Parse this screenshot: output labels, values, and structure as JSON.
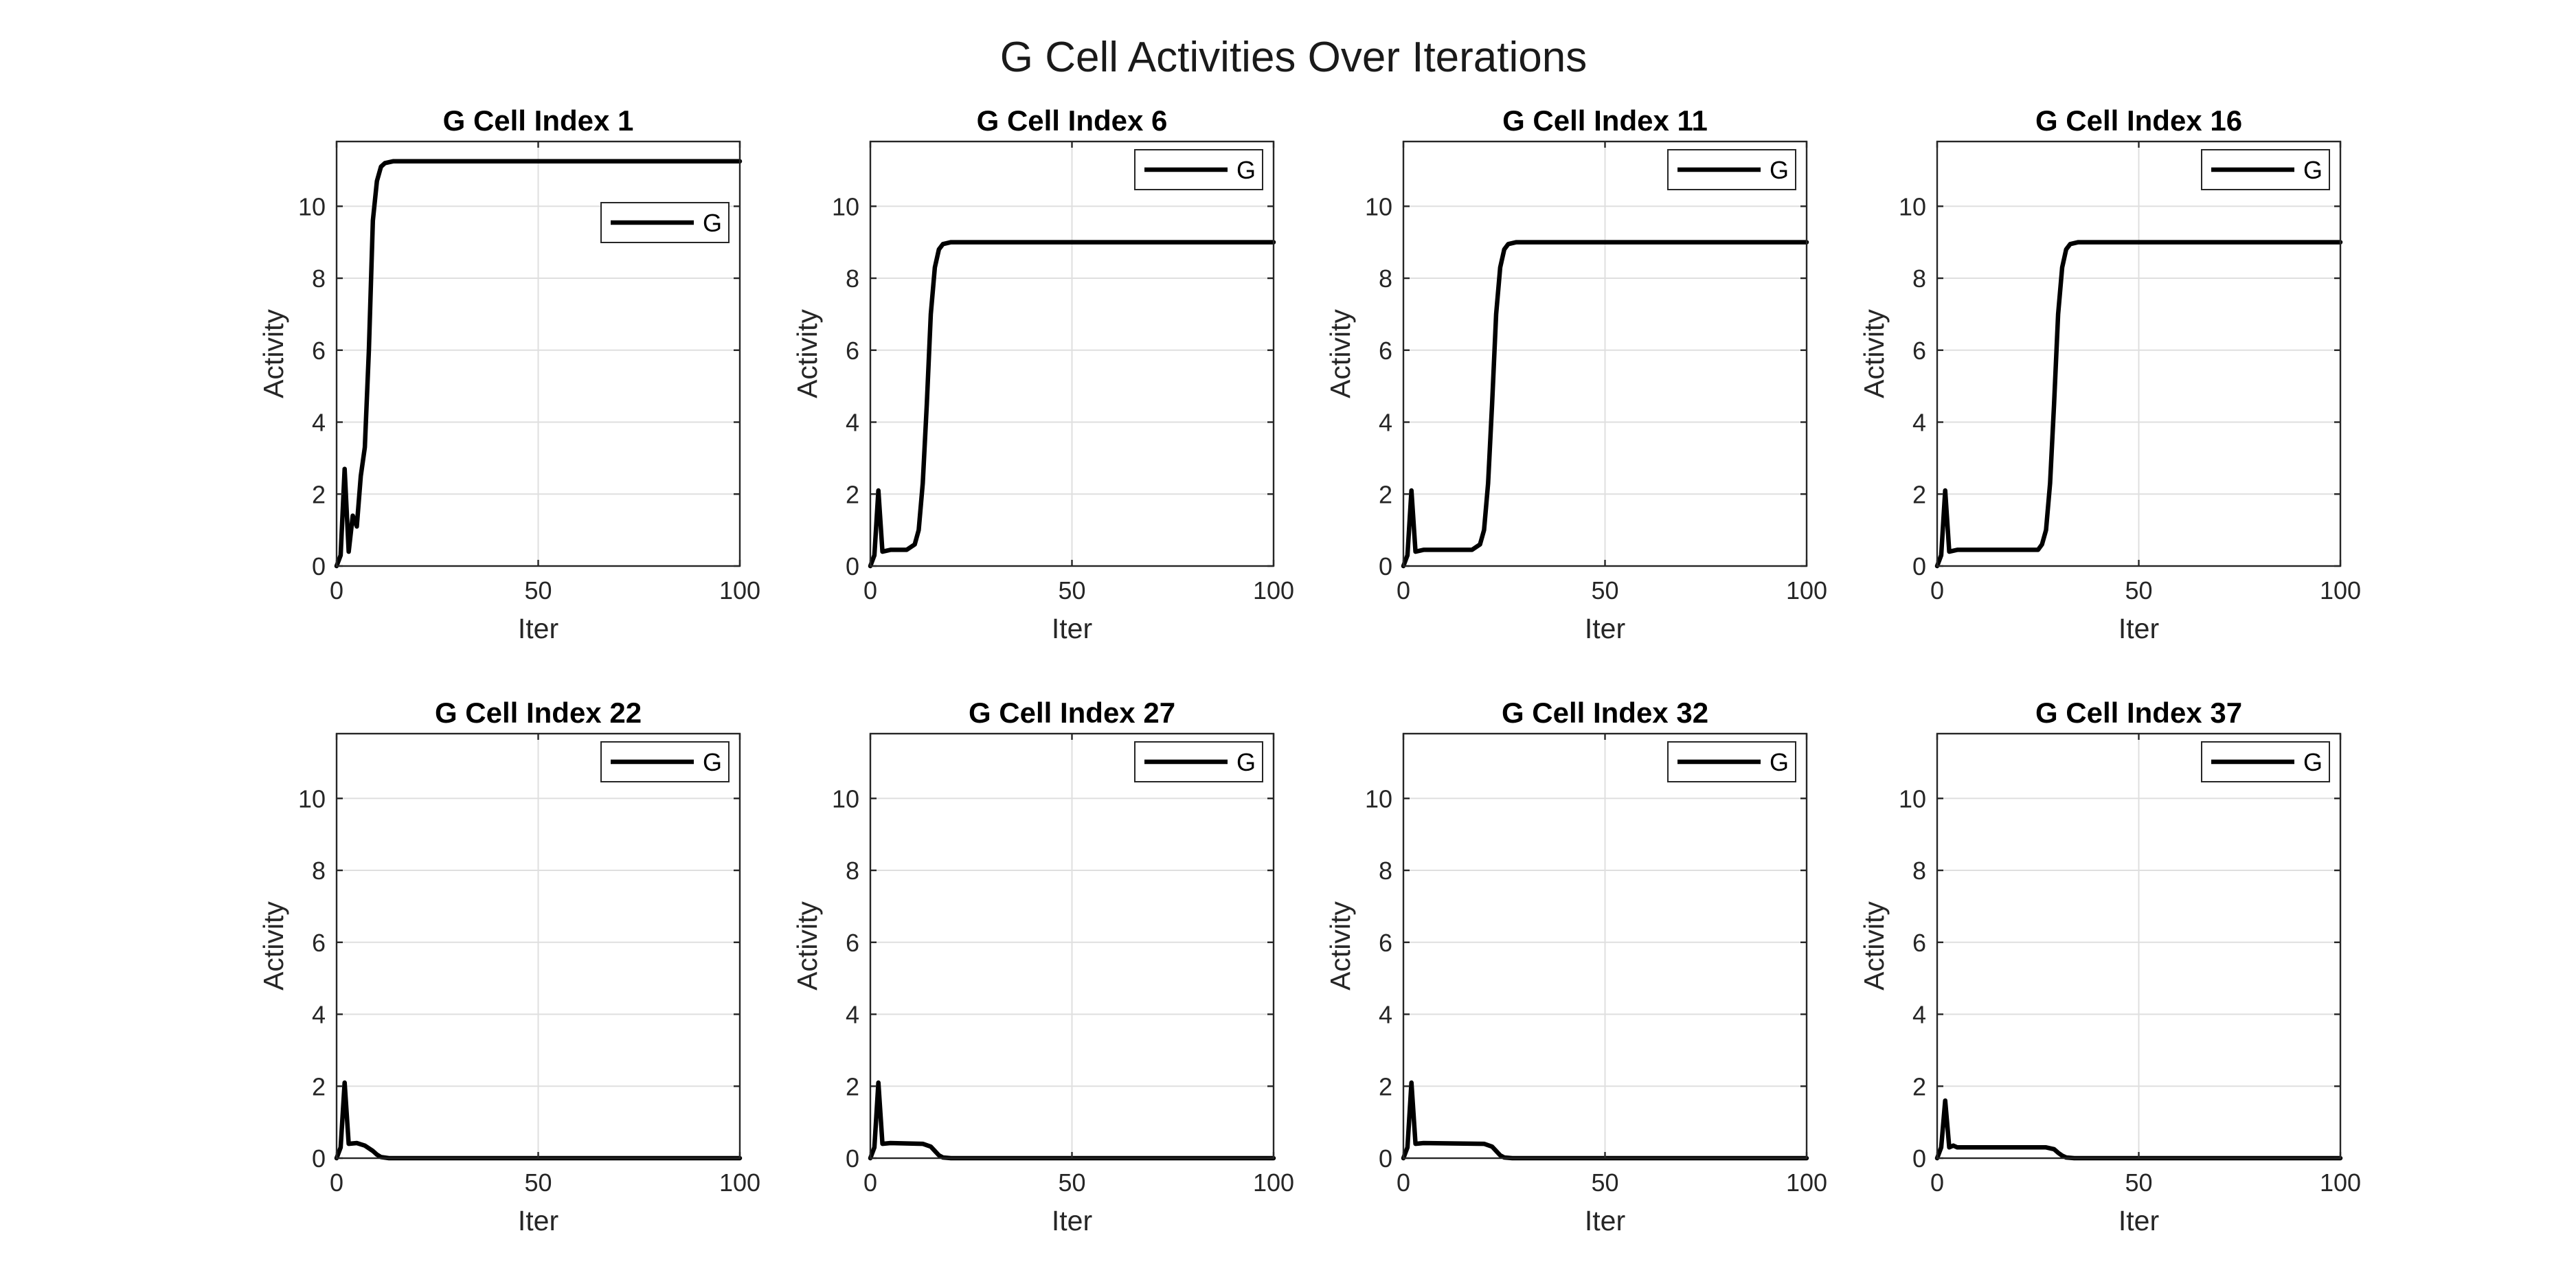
{
  "figure": {
    "title": "G Cell Activities Over Iterations"
  },
  "colors": {
    "series": "#000000",
    "grid": "#dfdfdf",
    "axis": "#262626"
  },
  "chart_data": [
    {
      "type": "line",
      "title": "G Cell Index 1",
      "xlabel": "Iter",
      "ylabel": "Activity",
      "xlim": [
        0,
        100
      ],
      "ylim": [
        0,
        11.8
      ],
      "xticks": [
        0,
        50,
        100
      ],
      "yticks": [
        0,
        2,
        4,
        6,
        8,
        10
      ],
      "grid": true,
      "legend": {
        "position": "upper-right-inset",
        "entries": [
          "G"
        ]
      },
      "series": [
        {
          "name": "G",
          "points": [
            [
              0,
              0
            ],
            [
              1,
              0.3
            ],
            [
              2,
              2.7
            ],
            [
              3,
              0.4
            ],
            [
              4,
              1.4
            ],
            [
              5,
              1.1
            ],
            [
              6,
              2.5
            ],
            [
              7,
              3.3
            ],
            [
              8,
              6
            ],
            [
              9,
              9.6
            ],
            [
              10,
              10.7
            ],
            [
              11,
              11.1
            ],
            [
              12,
              11.2
            ],
            [
              14,
              11.25
            ],
            [
              100,
              11.25
            ]
          ]
        }
      ]
    },
    {
      "type": "line",
      "title": "G Cell Index 6",
      "xlabel": "Iter",
      "ylabel": "Activity",
      "xlim": [
        0,
        100
      ],
      "ylim": [
        0,
        11.8
      ],
      "xticks": [
        0,
        50,
        100
      ],
      "yticks": [
        0,
        2,
        4,
        6,
        8,
        10
      ],
      "grid": true,
      "legend": {
        "position": "top-right",
        "entries": [
          "G"
        ]
      },
      "series": [
        {
          "name": "G",
          "points": [
            [
              0,
              0
            ],
            [
              1,
              0.3
            ],
            [
              2,
              2.1
            ],
            [
              3,
              0.4
            ],
            [
              5,
              0.45
            ],
            [
              9,
              0.45
            ],
            [
              11,
              0.6
            ],
            [
              12,
              1
            ],
            [
              13,
              2.3
            ],
            [
              14,
              4.5
            ],
            [
              15,
              7
            ],
            [
              16,
              8.3
            ],
            [
              17,
              8.8
            ],
            [
              18,
              8.95
            ],
            [
              20,
              9
            ],
            [
              100,
              9
            ]
          ]
        }
      ]
    },
    {
      "type": "line",
      "title": "G Cell Index 11",
      "xlabel": "Iter",
      "ylabel": "Activity",
      "xlim": [
        0,
        100
      ],
      "ylim": [
        0,
        11.8
      ],
      "xticks": [
        0,
        50,
        100
      ],
      "yticks": [
        0,
        2,
        4,
        6,
        8,
        10
      ],
      "grid": true,
      "legend": {
        "position": "top-right",
        "entries": [
          "G"
        ]
      },
      "series": [
        {
          "name": "G",
          "points": [
            [
              0,
              0
            ],
            [
              1,
              0.3
            ],
            [
              2,
              2.1
            ],
            [
              3,
              0.4
            ],
            [
              5,
              0.45
            ],
            [
              17,
              0.45
            ],
            [
              19,
              0.6
            ],
            [
              20,
              1
            ],
            [
              21,
              2.3
            ],
            [
              22,
              4.5
            ],
            [
              23,
              7
            ],
            [
              24,
              8.3
            ],
            [
              25,
              8.8
            ],
            [
              26,
              8.95
            ],
            [
              28,
              9
            ],
            [
              100,
              9
            ]
          ]
        }
      ]
    },
    {
      "type": "line",
      "title": "G Cell Index 16",
      "xlabel": "Iter",
      "ylabel": "Activity",
      "xlim": [
        0,
        100
      ],
      "ylim": [
        0,
        11.8
      ],
      "xticks": [
        0,
        50,
        100
      ],
      "yticks": [
        0,
        2,
        4,
        6,
        8,
        10
      ],
      "grid": true,
      "legend": {
        "position": "top-right",
        "entries": [
          "G"
        ]
      },
      "series": [
        {
          "name": "G",
          "points": [
            [
              0,
              0
            ],
            [
              1,
              0.3
            ],
            [
              2,
              2.1
            ],
            [
              3,
              0.4
            ],
            [
              5,
              0.45
            ],
            [
              25,
              0.45
            ],
            [
              26,
              0.6
            ],
            [
              27,
              1
            ],
            [
              28,
              2.3
            ],
            [
              29,
              4.5
            ],
            [
              30,
              7
            ],
            [
              31,
              8.3
            ],
            [
              32,
              8.8
            ],
            [
              33,
              8.95
            ],
            [
              35,
              9
            ],
            [
              100,
              9
            ]
          ]
        }
      ]
    },
    {
      "type": "line",
      "title": "G Cell Index 22",
      "xlabel": "Iter",
      "ylabel": "Activity",
      "xlim": [
        0,
        100
      ],
      "ylim": [
        0,
        11.8
      ],
      "xticks": [
        0,
        50,
        100
      ],
      "yticks": [
        0,
        2,
        4,
        6,
        8,
        10
      ],
      "grid": true,
      "legend": {
        "position": "top-right",
        "entries": [
          "G"
        ]
      },
      "series": [
        {
          "name": "G",
          "points": [
            [
              0,
              0
            ],
            [
              1,
              0.3
            ],
            [
              2,
              2.1
            ],
            [
              3,
              0.4
            ],
            [
              5,
              0.42
            ],
            [
              7,
              0.35
            ],
            [
              9,
              0.2
            ],
            [
              10,
              0.1
            ],
            [
              11,
              0.03
            ],
            [
              13,
              0
            ],
            [
              100,
              0
            ]
          ]
        }
      ]
    },
    {
      "type": "line",
      "title": "G Cell Index 27",
      "xlabel": "Iter",
      "ylabel": "Activity",
      "xlim": [
        0,
        100
      ],
      "ylim": [
        0,
        11.8
      ],
      "xticks": [
        0,
        50,
        100
      ],
      "yticks": [
        0,
        2,
        4,
        6,
        8,
        10
      ],
      "grid": true,
      "legend": {
        "position": "top-right",
        "entries": [
          "G"
        ]
      },
      "series": [
        {
          "name": "G",
          "points": [
            [
              0,
              0
            ],
            [
              1,
              0.3
            ],
            [
              2,
              2.1
            ],
            [
              3,
              0.4
            ],
            [
              5,
              0.42
            ],
            [
              13,
              0.4
            ],
            [
              15,
              0.32
            ],
            [
              16,
              0.2
            ],
            [
              17,
              0.08
            ],
            [
              18,
              0.02
            ],
            [
              20,
              0
            ],
            [
              100,
              0
            ]
          ]
        }
      ]
    },
    {
      "type": "line",
      "title": "G Cell Index 32",
      "xlabel": "Iter",
      "ylabel": "Activity",
      "xlim": [
        0,
        100
      ],
      "ylim": [
        0,
        11.8
      ],
      "xticks": [
        0,
        50,
        100
      ],
      "yticks": [
        0,
        2,
        4,
        6,
        8,
        10
      ],
      "grid": true,
      "legend": {
        "position": "top-right",
        "entries": [
          "G"
        ]
      },
      "series": [
        {
          "name": "G",
          "points": [
            [
              0,
              0
            ],
            [
              1,
              0.3
            ],
            [
              2,
              2.1
            ],
            [
              3,
              0.4
            ],
            [
              5,
              0.42
            ],
            [
              20,
              0.4
            ],
            [
              22,
              0.32
            ],
            [
              23,
              0.2
            ],
            [
              24,
              0.08
            ],
            [
              25,
              0.02
            ],
            [
              27,
              0
            ],
            [
              100,
              0
            ]
          ]
        }
      ]
    },
    {
      "type": "line",
      "title": "G Cell Index 37",
      "xlabel": "Iter",
      "ylabel": "Activity",
      "xlim": [
        0,
        100
      ],
      "ylim": [
        0,
        11.8
      ],
      "xticks": [
        0,
        50,
        100
      ],
      "yticks": [
        0,
        2,
        4,
        6,
        8,
        10
      ],
      "grid": true,
      "legend": {
        "position": "top-right",
        "entries": [
          "G"
        ]
      },
      "series": [
        {
          "name": "G",
          "points": [
            [
              0,
              0
            ],
            [
              1,
              0.3
            ],
            [
              2,
              1.6
            ],
            [
              3,
              0.3
            ],
            [
              4,
              0.35
            ],
            [
              5,
              0.3
            ],
            [
              27,
              0.3
            ],
            [
              29,
              0.25
            ],
            [
              30,
              0.15
            ],
            [
              31,
              0.07
            ],
            [
              32,
              0.02
            ],
            [
              34,
              0
            ],
            [
              100,
              0
            ]
          ]
        }
      ]
    }
  ]
}
